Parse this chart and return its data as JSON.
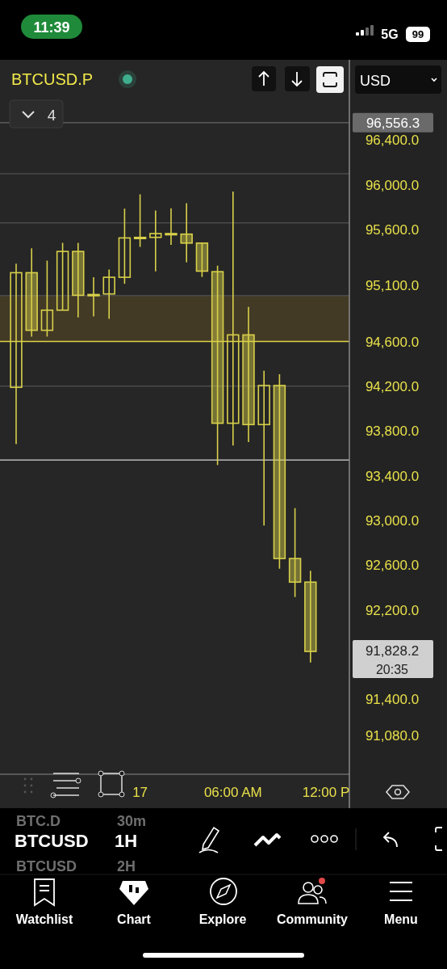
{
  "chart_data": {
    "type": "candlestick",
    "title": "BTCUSD.P",
    "color": "#d8d04a",
    "categories": [
      null,
      null,
      null,
      null,
      null,
      null,
      null,
      null,
      "17",
      null,
      null,
      null,
      null,
      null,
      "06:00 AM",
      null,
      null,
      null,
      null,
      null,
      "12:00 P"
    ],
    "ohlc": [
      [
        94190,
        95295,
        93683,
        95215
      ],
      [
        95215,
        95434,
        94644,
        94700
      ],
      [
        94700,
        95323,
        94644,
        94880
      ],
      [
        94880,
        95482,
        94880,
        95405
      ],
      [
        95405,
        95482,
        94815,
        95013
      ],
      [
        95013,
        95174,
        94825,
        95020
      ],
      [
        95025,
        95243,
        94803,
        95174
      ],
      [
        95174,
        95788,
        95116,
        95526
      ],
      [
        95526,
        95916,
        95446,
        95531
      ],
      [
        95531,
        95771,
        95227,
        95565
      ],
      [
        95565,
        95791,
        95463,
        95560
      ],
      [
        95560,
        95836,
        95309,
        95480
      ],
      [
        95480,
        95480,
        95177,
        95229
      ],
      [
        95224,
        95278,
        93495,
        93869
      ],
      [
        93869,
        95940,
        93669,
        94659
      ],
      [
        94659,
        94909,
        93700,
        93857
      ],
      [
        93857,
        94339,
        92954,
        94206
      ],
      [
        94206,
        94307,
        92568,
        92659
      ],
      [
        92659,
        93110,
        92315,
        92448
      ],
      [
        92448,
        92549,
        91730,
        91828.2
      ],
      null
    ],
    "ylim": [
      90730,
      97090
    ],
    "yticks": [
      {
        "value": 96400,
        "label": "96,400.0"
      },
      {
        "value": 96000,
        "label": "96,000.0"
      },
      {
        "value": 95600,
        "label": "95,600.0"
      },
      {
        "value": 95100,
        "label": "95,100.0"
      },
      {
        "value": 94600,
        "label": "94,600.0"
      },
      {
        "value": 94200,
        "label": "94,200.0"
      },
      {
        "value": 93800,
        "label": "93,800.0"
      },
      {
        "value": 93400,
        "label": "93,400.0"
      },
      {
        "value": 93000,
        "label": "93,000.0"
      },
      {
        "value": 92600,
        "label": "92,600.0"
      },
      {
        "value": 92200,
        "label": "92,200.0"
      },
      {
        "value": 91400,
        "label": "91,400.0"
      },
      {
        "value": 91080,
        "label": "91,080.0"
      }
    ],
    "ref_lines": [
      {
        "axis": "y",
        "value": 96556.3,
        "label": "96,556.3",
        "color": "#5a5a5a"
      },
      {
        "axis": "y",
        "value": 96100,
        "color": "#4a4a4a"
      },
      {
        "axis": "y",
        "value": 95660,
        "color": "#4a4a4a"
      },
      {
        "axis": "y",
        "value": 95010,
        "color": "#4a4a4a"
      },
      {
        "axis": "y",
        "value": 94600,
        "color": "#e0d44a"
      },
      {
        "axis": "y",
        "value": 94200,
        "color": "#4a4a4a"
      },
      {
        "axis": "y",
        "value": 93540,
        "color": "#b8b8b8"
      }
    ],
    "bands": [
      {
        "axis": "y",
        "from": 94600,
        "to": 95010,
        "color": "#4a4026"
      }
    ],
    "annotations": [
      "91,828.2",
      "20:35",
      "11:39",
      "5G",
      "99",
      "USD",
      "4",
      "BTCUSD",
      "1H",
      "BTC.D",
      "30m",
      "BTCUSD",
      "2H",
      "Watchlist",
      "Chart",
      "Explore",
      "Community",
      "Menu"
    ]
  }
}
